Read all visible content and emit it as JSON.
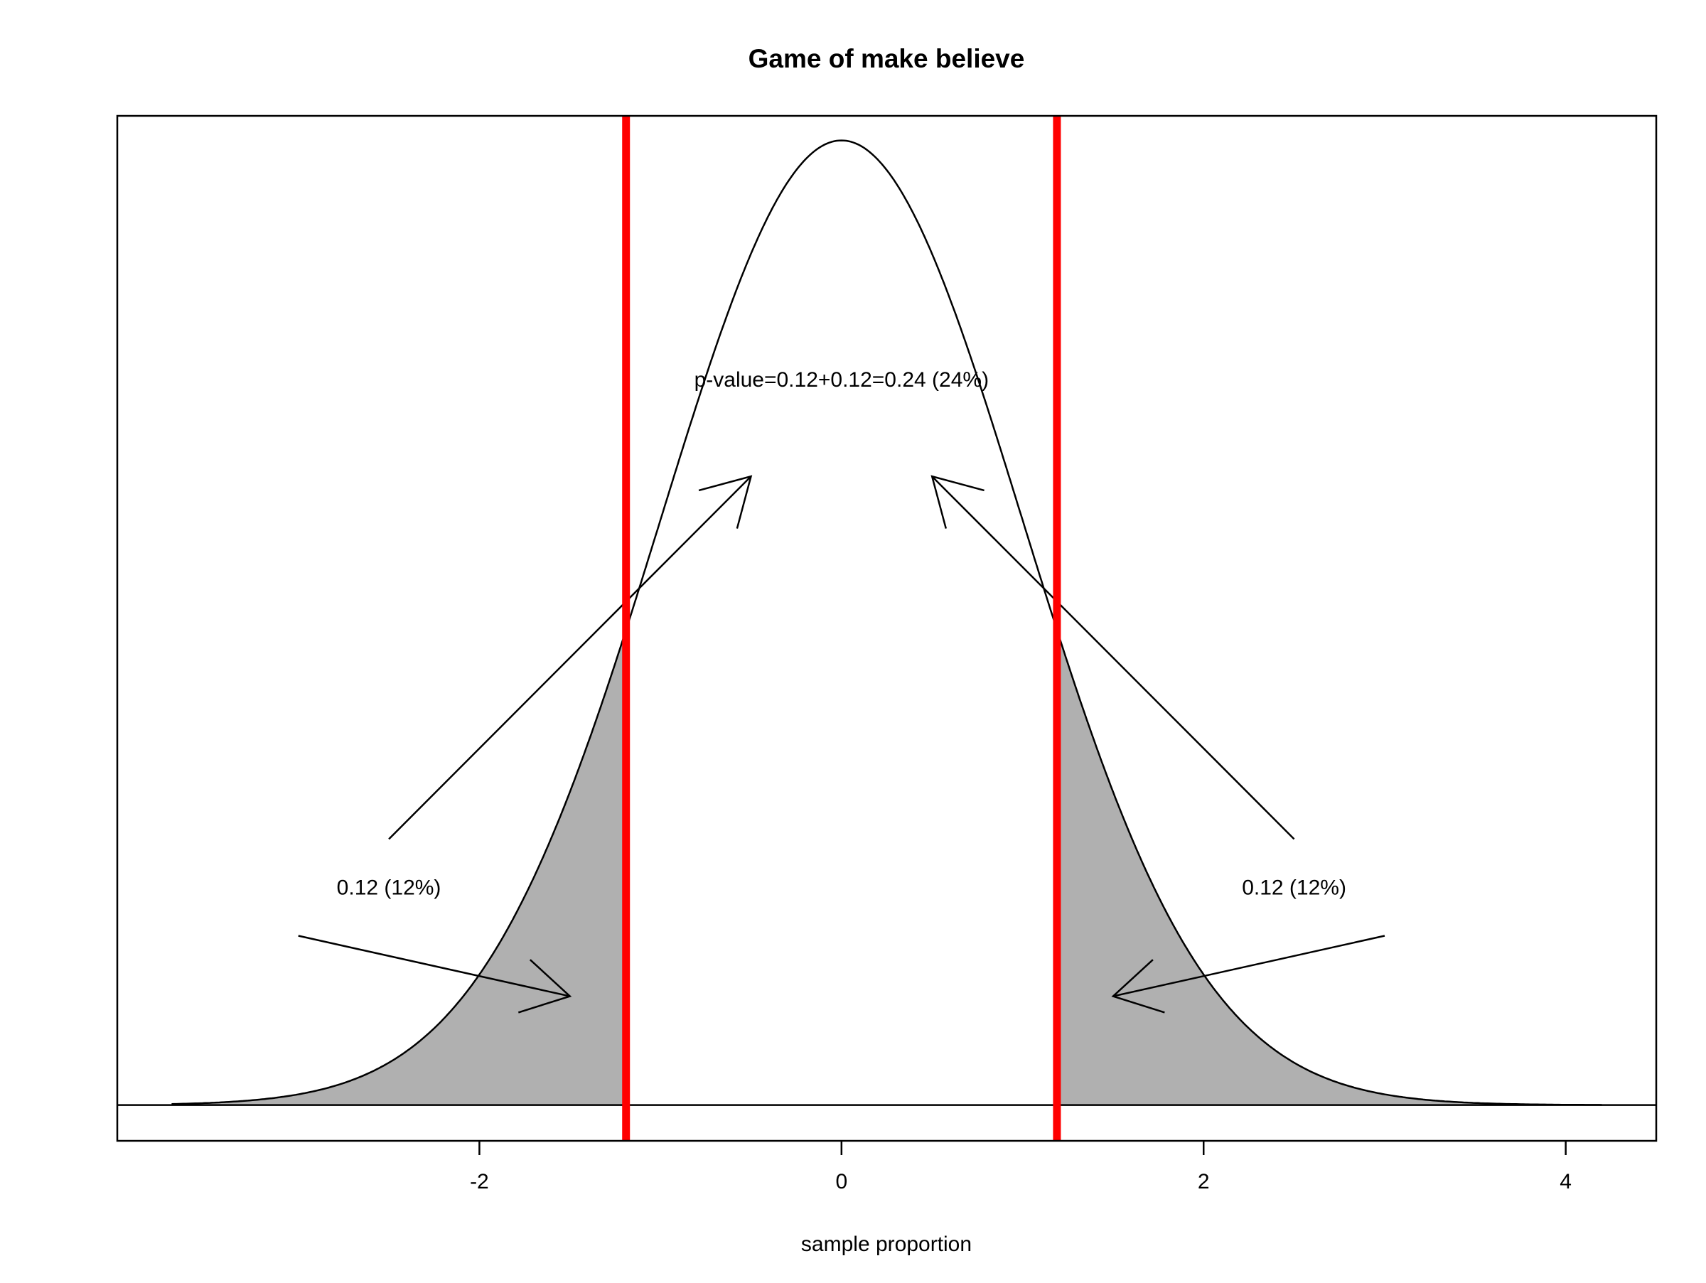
{
  "chart_data": {
    "type": "area",
    "title": "Game of make believe",
    "xlabel": "sample proportion",
    "ylabel": "",
    "xlim": [
      -4.0,
      4.5
    ],
    "ylim": [
      -0.0148,
      0.4091
    ],
    "x_ticks": [
      -2,
      0,
      2,
      4
    ],
    "x_tick_labels": [
      "-2",
      "0",
      "2",
      "4"
    ],
    "y_axis_shown": false,
    "grid": false,
    "series": [
      {
        "kind": "normal_density",
        "mean": 0,
        "sd": 1,
        "x_range": [
          -3.7,
          4.2
        ]
      }
    ],
    "shaded_tails": {
      "left_upper": -1.19,
      "right_lower": 1.19,
      "fill_color": "#b0b0b0"
    },
    "critical_lines": {
      "values": [
        -1.19,
        1.19
      ],
      "color": "#ff0000"
    },
    "baseline_y": 0,
    "annotations": [
      {
        "text": "p-value=0.12+0.12=0.24 (24%)",
        "x": 0.0,
        "y": 0.3
      },
      {
        "text": "0.12 (12%)",
        "x": -2.5,
        "y": 0.09
      },
      {
        "text": "0.12 (12%)",
        "x": 2.5,
        "y": 0.09
      }
    ],
    "arrows": [
      {
        "from": [
          -2.5,
          0.11
        ],
        "to": [
          -0.5,
          0.26
        ]
      },
      {
        "from": [
          2.5,
          0.11
        ],
        "to": [
          0.5,
          0.26
        ]
      },
      {
        "from": [
          -3.0,
          0.07
        ],
        "to": [
          -1.5,
          0.045
        ]
      },
      {
        "from": [
          3.0,
          0.07
        ],
        "to": [
          1.5,
          0.045
        ]
      }
    ]
  }
}
